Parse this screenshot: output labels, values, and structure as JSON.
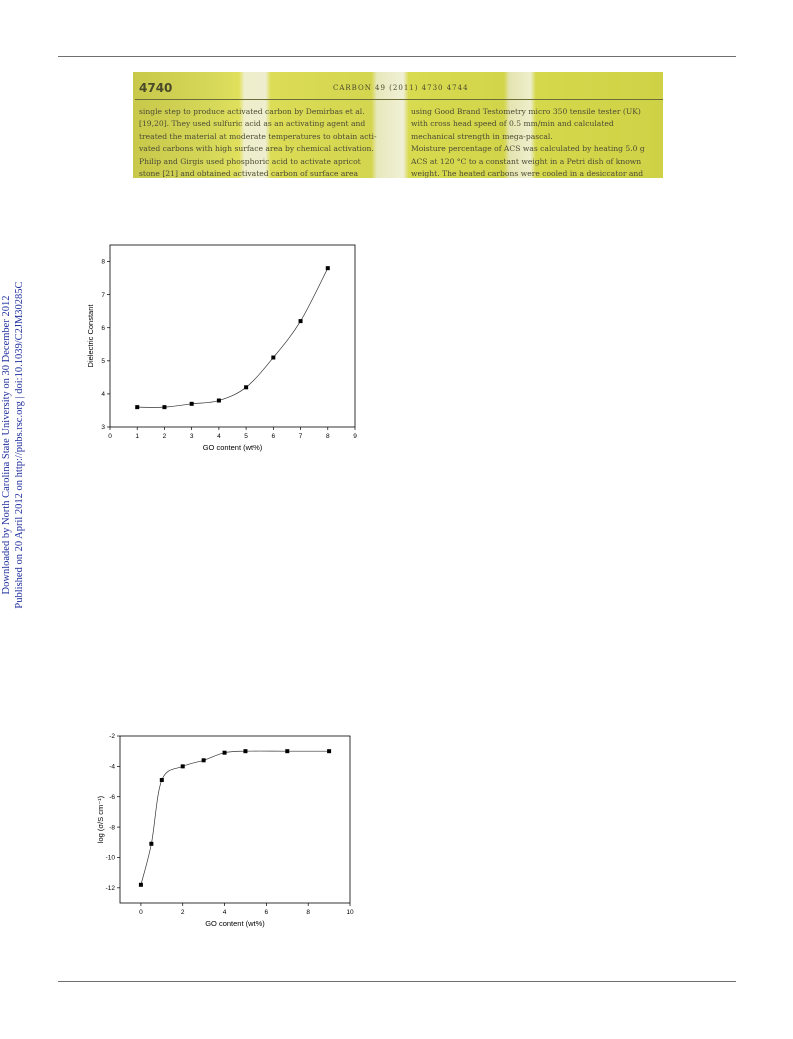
{
  "sidebar": {
    "line1": "Downloaded by North Carolina State University on 30 December 2012",
    "line2": "Published on 20 April 2012 on http://pubs.rsc.org | doi:10.1039/C2JM30285C"
  },
  "photo": {
    "page_number": "4740",
    "running_head": "CARBON 49 (2011) 4730 4744",
    "left_lines": [
      "single step to produce activated carbon by Demirbas et al.",
      "[19,20]. They used sulfuric acid as an activating agent and",
      "treated the material at moderate temperatures to obtain acti-",
      "vated carbons with high surface area by chemical activation.",
      "Philip and Girgis used phosphoric acid to activate apricot",
      "stone [21] and obtained activated carbon of surface area"
    ],
    "right_lines": [
      "using Good Brand Testometry micro 350 tensile tester (UK)",
      "with cross head speed of 0.5 mm/min and calculated",
      "mechanical strength in mega-pascal.",
      "    Moisture percentage of ACS was calculated by heating 5.0 g",
      "ACS at 120 °C to a constant weight in a Petri dish of known",
      "weight. The heated carbons were cooled in a desiccator and"
    ]
  },
  "chart_data": [
    {
      "type": "scatter",
      "xlabel": "GO content (wt%)",
      "ylabel": "Dielectric Constant",
      "xlim": [
        0,
        9
      ],
      "ylim": [
        3,
        8.5
      ],
      "xticks": [
        0,
        1,
        2,
        3,
        4,
        5,
        6,
        7,
        8,
        9
      ],
      "yticks": [
        3,
        4,
        5,
        6,
        7,
        8
      ],
      "x": [
        1,
        2,
        3,
        4,
        5,
        6,
        7,
        8
      ],
      "y": [
        3.6,
        3.6,
        3.7,
        3.8,
        4.2,
        5.1,
        6.2,
        7.8
      ],
      "fit_curve": true,
      "grid": false
    },
    {
      "type": "scatter",
      "xlabel": "GO content (wt%)",
      "ylabel": "log (σ/S cm⁻¹)",
      "xlim": [
        -1,
        10
      ],
      "ylim": [
        -13,
        -2
      ],
      "xticks": [
        0,
        2,
        4,
        6,
        8,
        10
      ],
      "yticks": [
        -2,
        -4,
        -6,
        -8,
        -10,
        -12
      ],
      "x": [
        0,
        0.5,
        1,
        2,
        3,
        4,
        5,
        7,
        9
      ],
      "y": [
        -11.8,
        -9.1,
        -4.9,
        -4.0,
        -3.6,
        -3.1,
        -3.0,
        -3.0,
        -3.0
      ],
      "fit_curve": true,
      "grid": false
    }
  ]
}
